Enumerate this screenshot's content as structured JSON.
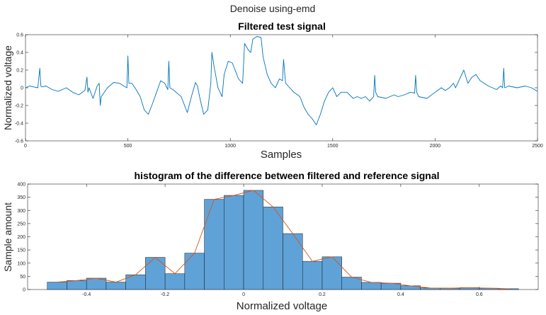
{
  "figure": {
    "suptitle": "Denoise using-emd"
  },
  "chart_data": [
    {
      "type": "line",
      "title": "Filtered test signal",
      "xlabel": "Samples",
      "ylabel": "Normalized voltage",
      "xlim": [
        0,
        2500
      ],
      "ylim": [
        -0.6,
        0.6
      ],
      "xticks": [
        "0",
        "500",
        "1000",
        "1500",
        "2000",
        "2500"
      ],
      "yticks": [
        "-0.6",
        "-0.4",
        "-0.2",
        "0",
        "0.2",
        "0.4",
        "0.6"
      ],
      "grid": false,
      "series": [
        {
          "color": "#0072bd",
          "x": [
            0,
            20,
            40,
            60,
            70,
            75,
            80,
            100,
            130,
            160,
            200,
            230,
            260,
            290,
            300,
            305,
            310,
            330,
            350,
            360,
            365,
            370,
            400,
            430,
            460,
            480,
            495,
            500,
            505,
            520,
            540,
            560,
            580,
            600,
            620,
            640,
            660,
            680,
            695,
            700,
            705,
            720,
            760,
            790,
            810,
            830,
            840,
            850,
            870,
            890,
            905,
            910,
            920,
            940,
            960,
            970,
            990,
            1010,
            1040,
            1060,
            1070,
            1090,
            1100,
            1110,
            1130,
            1150,
            1160,
            1180,
            1200,
            1220,
            1240,
            1255,
            1260,
            1270,
            1290,
            1310,
            1340,
            1360,
            1380,
            1400,
            1420,
            1440,
            1460,
            1480,
            1500,
            1520,
            1540,
            1570,
            1600,
            1620,
            1640,
            1660,
            1680,
            1700,
            1705,
            1710,
            1720,
            1760,
            1800,
            1820,
            1850,
            1880,
            1900,
            1905,
            1910,
            1920,
            1960,
            2000,
            2030,
            2050,
            2070,
            2090,
            2100,
            2120,
            2140,
            2160,
            2180,
            2200,
            2220,
            2240,
            2260,
            2280,
            2300,
            2320,
            2330,
            2335,
            2340,
            2360,
            2400,
            2440,
            2470,
            2500
          ],
          "y": [
            0.0,
            0.02,
            0.01,
            0.0,
            0.22,
            0.02,
            0.01,
            0.02,
            -0.02,
            -0.04,
            0.0,
            -0.05,
            -0.08,
            -0.03,
            0.12,
            -0.05,
            0.0,
            -0.12,
            0.02,
            0.05,
            -0.2,
            -0.1,
            0.0,
            0.06,
            0.05,
            0.02,
            0.0,
            0.36,
            0.05,
            0.05,
            -0.02,
            -0.1,
            -0.25,
            -0.3,
            -0.18,
            -0.05,
            0.08,
            0.05,
            -0.02,
            0.3,
            0.0,
            -0.02,
            -0.1,
            -0.28,
            -0.1,
            0.06,
            0.02,
            -0.1,
            -0.3,
            -0.25,
            0.05,
            0.4,
            0.25,
            0.0,
            -0.1,
            0.15,
            0.3,
            0.28,
            0.1,
            0.05,
            0.5,
            0.42,
            0.4,
            0.55,
            0.58,
            0.57,
            0.35,
            0.15,
            0.05,
            0.0,
            0.1,
            0.08,
            0.32,
            0.05,
            0.0,
            -0.05,
            -0.1,
            -0.22,
            -0.3,
            -0.35,
            -0.42,
            -0.3,
            -0.15,
            -0.05,
            0.0,
            -0.1,
            -0.05,
            -0.05,
            -0.12,
            -0.1,
            -0.12,
            -0.1,
            -0.15,
            -0.1,
            0.14,
            -0.05,
            -0.1,
            -0.12,
            -0.08,
            -0.1,
            -0.08,
            -0.05,
            -0.06,
            0.14,
            -0.05,
            -0.1,
            -0.12,
            -0.05,
            0.0,
            -0.03,
            0.0,
            0.05,
            0.0,
            0.1,
            0.2,
            0.05,
            0.12,
            0.15,
            0.08,
            0.05,
            0.02,
            0.0,
            -0.02,
            0.02,
            0.0,
            0.22,
            0.0,
            0.02,
            0.0,
            0.02,
            0.0,
            -0.04
          ]
        }
      ]
    },
    {
      "type": "bar",
      "title": "histogram of the difference between filtered and reference signal",
      "xlabel": "Normalized voltage",
      "ylabel": "Sample amount",
      "xlim": [
        -0.55,
        0.75
      ],
      "ylim": [
        0,
        400
      ],
      "xticks": [
        "-0.4",
        "-0.2",
        "0",
        "0.2",
        "0.4",
        "0.6"
      ],
      "yticks": [
        "0",
        "50",
        "100",
        "150",
        "200",
        "250",
        "300",
        "350",
        "400"
      ],
      "grid": false,
      "bar_color": "#5fa2d8",
      "curve_color": "#d95319",
      "bin_edges": [
        -0.5,
        -0.45,
        -0.4,
        -0.35,
        -0.3,
        -0.25,
        -0.2,
        -0.15,
        -0.1,
        -0.05,
        0.0,
        0.05,
        0.1,
        0.15,
        0.2,
        0.25,
        0.3,
        0.35,
        0.4,
        0.45,
        0.5,
        0.55,
        0.6,
        0.65,
        0.7
      ],
      "values": [
        28,
        34,
        43,
        28,
        56,
        122,
        60,
        138,
        342,
        357,
        376,
        313,
        212,
        107,
        124,
        47,
        27,
        24,
        14,
        6,
        5,
        7,
        5,
        3
      ]
    }
  ]
}
